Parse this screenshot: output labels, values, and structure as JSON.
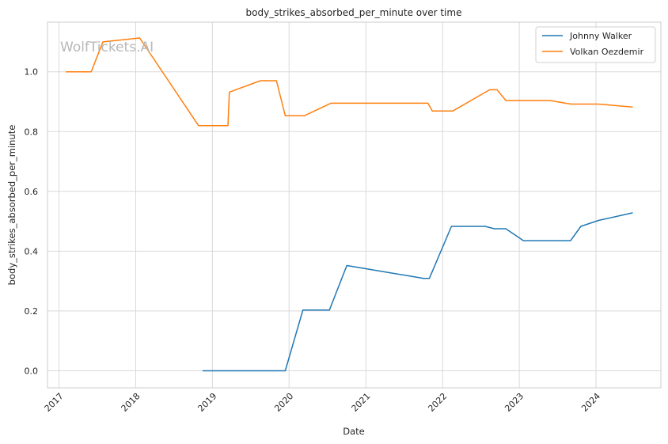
{
  "watermark": "WolfTickets.AI",
  "chart_data": {
    "type": "line",
    "title": "body_strikes_absorbed_per_minute over time",
    "xlabel": "Date",
    "ylabel": "body_strikes_absorbed_per_minute",
    "x_type": "date",
    "xlim": [
      "2016-11-07",
      "2024-11-05"
    ],
    "ylim": [
      -0.057,
      1.166
    ],
    "x_ticks": [
      "2017-01-01",
      "2018-01-01",
      "2019-01-01",
      "2020-01-01",
      "2021-01-01",
      "2022-01-01",
      "2023-01-01",
      "2024-01-01"
    ],
    "x_tick_labels": [
      "2017",
      "2018",
      "2019",
      "2020",
      "2021",
      "2022",
      "2023",
      "2024"
    ],
    "y_ticks": [
      0.0,
      0.2,
      0.4,
      0.6,
      0.8,
      1.0
    ],
    "y_tick_labels": [
      "0.0",
      "0.2",
      "0.4",
      "0.6",
      "0.8",
      "1.0"
    ],
    "grid": true,
    "legend_position": "top-right",
    "series": [
      {
        "name": "Johnny Walker",
        "color": "#1f77b4",
        "points": [
          [
            "2018-11-17",
            0.0
          ],
          [
            "2019-12-14",
            0.0
          ],
          [
            "2020-03-07",
            0.203
          ],
          [
            "2020-07-11",
            0.203
          ],
          [
            "2020-10-02",
            0.352
          ],
          [
            "2021-10-02",
            0.309
          ],
          [
            "2021-10-30",
            0.309
          ],
          [
            "2022-02-12",
            0.483
          ],
          [
            "2022-07-23",
            0.483
          ],
          [
            "2022-09-03",
            0.475
          ],
          [
            "2022-10-29",
            0.475
          ],
          [
            "2023-01-21",
            0.435
          ],
          [
            "2023-09-02",
            0.435
          ],
          [
            "2023-10-21",
            0.483
          ],
          [
            "2024-01-13",
            0.503
          ],
          [
            "2024-06-22",
            0.528
          ]
        ]
      },
      {
        "name": "Volkan Oezdemir",
        "color": "#ff7f0e",
        "points": [
          [
            "2017-02-04",
            1.0
          ],
          [
            "2017-06-03",
            1.0
          ],
          [
            "2017-07-29",
            1.1
          ],
          [
            "2018-01-20",
            1.113
          ],
          [
            "2018-10-27",
            0.82
          ],
          [
            "2019-03-16",
            0.82
          ],
          [
            "2019-03-23",
            0.932
          ],
          [
            "2019-08-17",
            0.97
          ],
          [
            "2019-11-02",
            0.97
          ],
          [
            "2019-12-14",
            0.853
          ],
          [
            "2020-03-14",
            0.853
          ],
          [
            "2020-07-18",
            0.895
          ],
          [
            "2021-10-23",
            0.895
          ],
          [
            "2021-11-13",
            0.869
          ],
          [
            "2022-02-19",
            0.869
          ],
          [
            "2022-08-13",
            0.94
          ],
          [
            "2022-09-17",
            0.94
          ],
          [
            "2022-10-29",
            0.904
          ],
          [
            "2023-05-27",
            0.904
          ],
          [
            "2023-09-02",
            0.892
          ],
          [
            "2024-01-13",
            0.892
          ],
          [
            "2024-06-22",
            0.882
          ]
        ]
      }
    ]
  }
}
